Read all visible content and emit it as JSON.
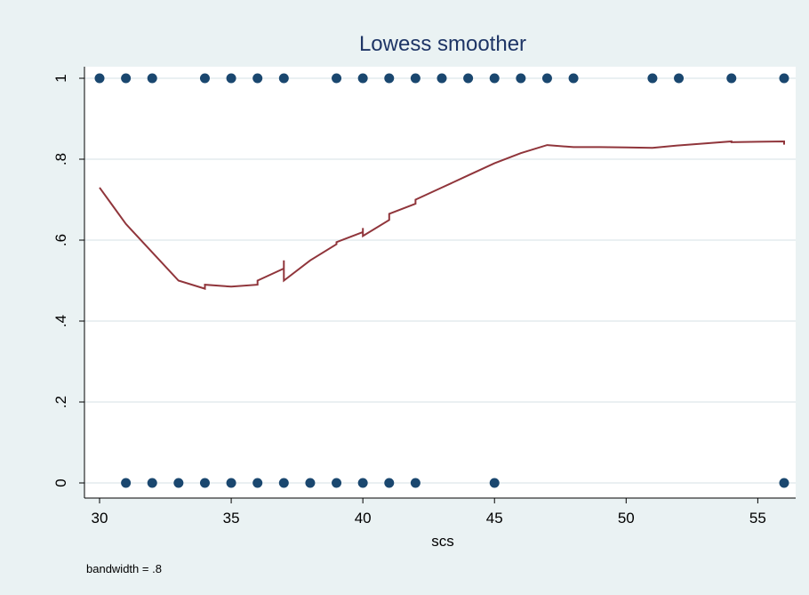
{
  "chart_data": {
    "type": "scatter",
    "title": "Lowess smoother",
    "xlabel": "scs",
    "ylabel": "",
    "note": "bandwidth = .8",
    "xlim": [
      30,
      56
    ],
    "ylim": [
      0,
      1
    ],
    "x_ticks": [
      30,
      35,
      40,
      45,
      50,
      55
    ],
    "x_tick_labels": [
      "30",
      "35",
      "40",
      "45",
      "50",
      "55"
    ],
    "y_ticks": [
      0,
      0.2,
      0.4,
      0.6,
      0.8,
      1
    ],
    "y_tick_labels": [
      "0",
      ".2",
      ".4",
      ".6",
      ".8",
      "1"
    ],
    "grid": true,
    "colors": {
      "background": "#eaf2f3",
      "plot_area": "#ffffff",
      "grid": "#e3ecee",
      "points": "#1a476f",
      "lowess": "#90353b",
      "title": "#1e3566",
      "text": "#000000"
    },
    "points": {
      "x": [
        30,
        31,
        32,
        34,
        35,
        36,
        37,
        39,
        40,
        41,
        42,
        43,
        44,
        45,
        46,
        47,
        48,
        51,
        52,
        54,
        56,
        31,
        32,
        33,
        34,
        35,
        36,
        37,
        38,
        39,
        40,
        41,
        42,
        45,
        56
      ],
      "y": [
        1,
        1,
        1,
        1,
        1,
        1,
        1,
        1,
        1,
        1,
        1,
        1,
        1,
        1,
        1,
        1,
        1,
        1,
        1,
        1,
        1,
        0,
        0,
        0,
        0,
        0,
        0,
        0,
        0,
        0,
        0,
        0,
        0,
        0,
        0
      ]
    },
    "lowess": {
      "x": [
        30,
        31,
        32,
        33,
        34,
        34,
        35,
        36,
        36,
        37,
        37,
        37,
        38,
        39,
        39,
        40,
        40,
        40,
        41,
        41,
        42,
        42,
        43,
        44,
        45,
        46,
        47,
        48,
        49,
        50,
        51,
        52,
        53,
        54,
        54,
        55,
        56,
        56
      ],
      "y": [
        0.73,
        0.64,
        0.57,
        0.5,
        0.48,
        0.49,
        0.485,
        0.49,
        0.5,
        0.53,
        0.55,
        0.5,
        0.55,
        0.59,
        0.595,
        0.62,
        0.63,
        0.61,
        0.65,
        0.665,
        0.69,
        0.7,
        0.73,
        0.76,
        0.79,
        0.815,
        0.835,
        0.83,
        0.83,
        0.829,
        0.828,
        0.834,
        0.839,
        0.844,
        0.842,
        0.843,
        0.844,
        0.836
      ]
    }
  }
}
